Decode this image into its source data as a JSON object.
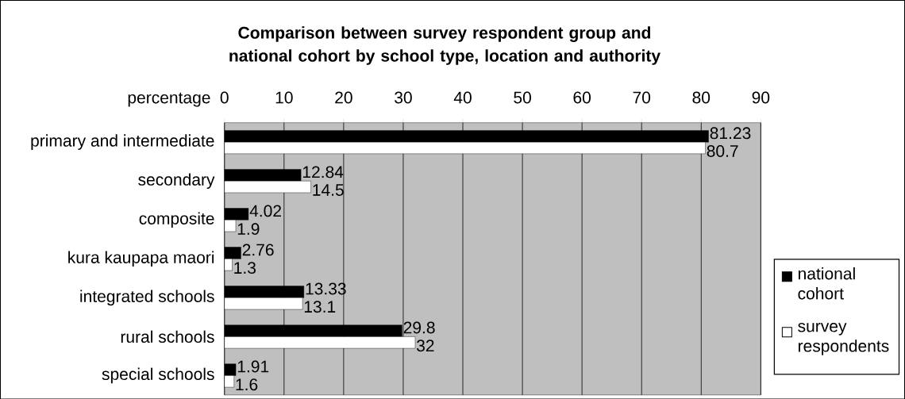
{
  "chart_data": {
    "type": "bar",
    "orientation": "horizontal",
    "title": "Comparison between survey respondent group and national cohort by school type, location and authority",
    "xlabel": "percentage",
    "categories": [
      "primary and intermediate",
      "secondary",
      "composite",
      "kura kaupapa maori",
      "integrated schools",
      "rural schools",
      "special schools"
    ],
    "series": [
      {
        "name": "national cohort",
        "color": "#000000",
        "values": [
          81.23,
          12.84,
          4.02,
          2.76,
          13.33,
          29.8,
          1.91
        ]
      },
      {
        "name": "survey respondents",
        "color": "#ffffff",
        "values": [
          80.7,
          14.5,
          1.9,
          1.3,
          13.1,
          32,
          1.6
        ]
      }
    ],
    "xlim": [
      0,
      90
    ],
    "xticks": [
      0,
      10,
      20,
      30,
      40,
      50,
      60,
      70,
      80,
      90
    ],
    "grid": "x",
    "legend": "right",
    "data_labels": true
  }
}
